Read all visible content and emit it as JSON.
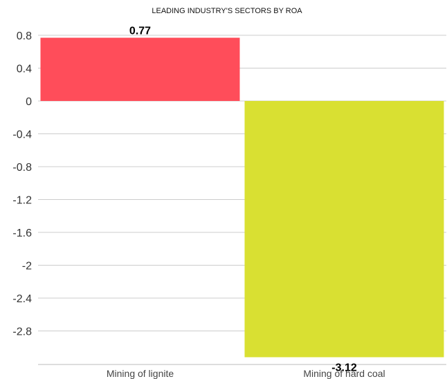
{
  "chart_data": {
    "type": "bar",
    "title": "LEADING INDUSTRY'S SECTORS BY ROA",
    "categories": [
      "Mining of lignite",
      "Mining of hard coal"
    ],
    "values": [
      0.77,
      -3.12
    ],
    "data_labels": [
      "0.77",
      "-3.12"
    ],
    "colors": [
      "#ff4d5a",
      "#d9e032"
    ],
    "xlabel": "",
    "ylabel": "",
    "ylim": [
      -3.12,
      0.8
    ],
    "yticks": [
      0.8,
      0.4,
      0,
      -0.4,
      -0.8,
      -1.2,
      -1.6,
      -2,
      -2.4,
      -2.8
    ],
    "ytick_labels": [
      "0.8",
      "0.4",
      "0",
      "-0.4",
      "-0.8",
      "-1.2",
      "-1.6",
      "-2",
      "-2.4",
      "-2.8"
    ],
    "grid": true,
    "legend": "none"
  }
}
